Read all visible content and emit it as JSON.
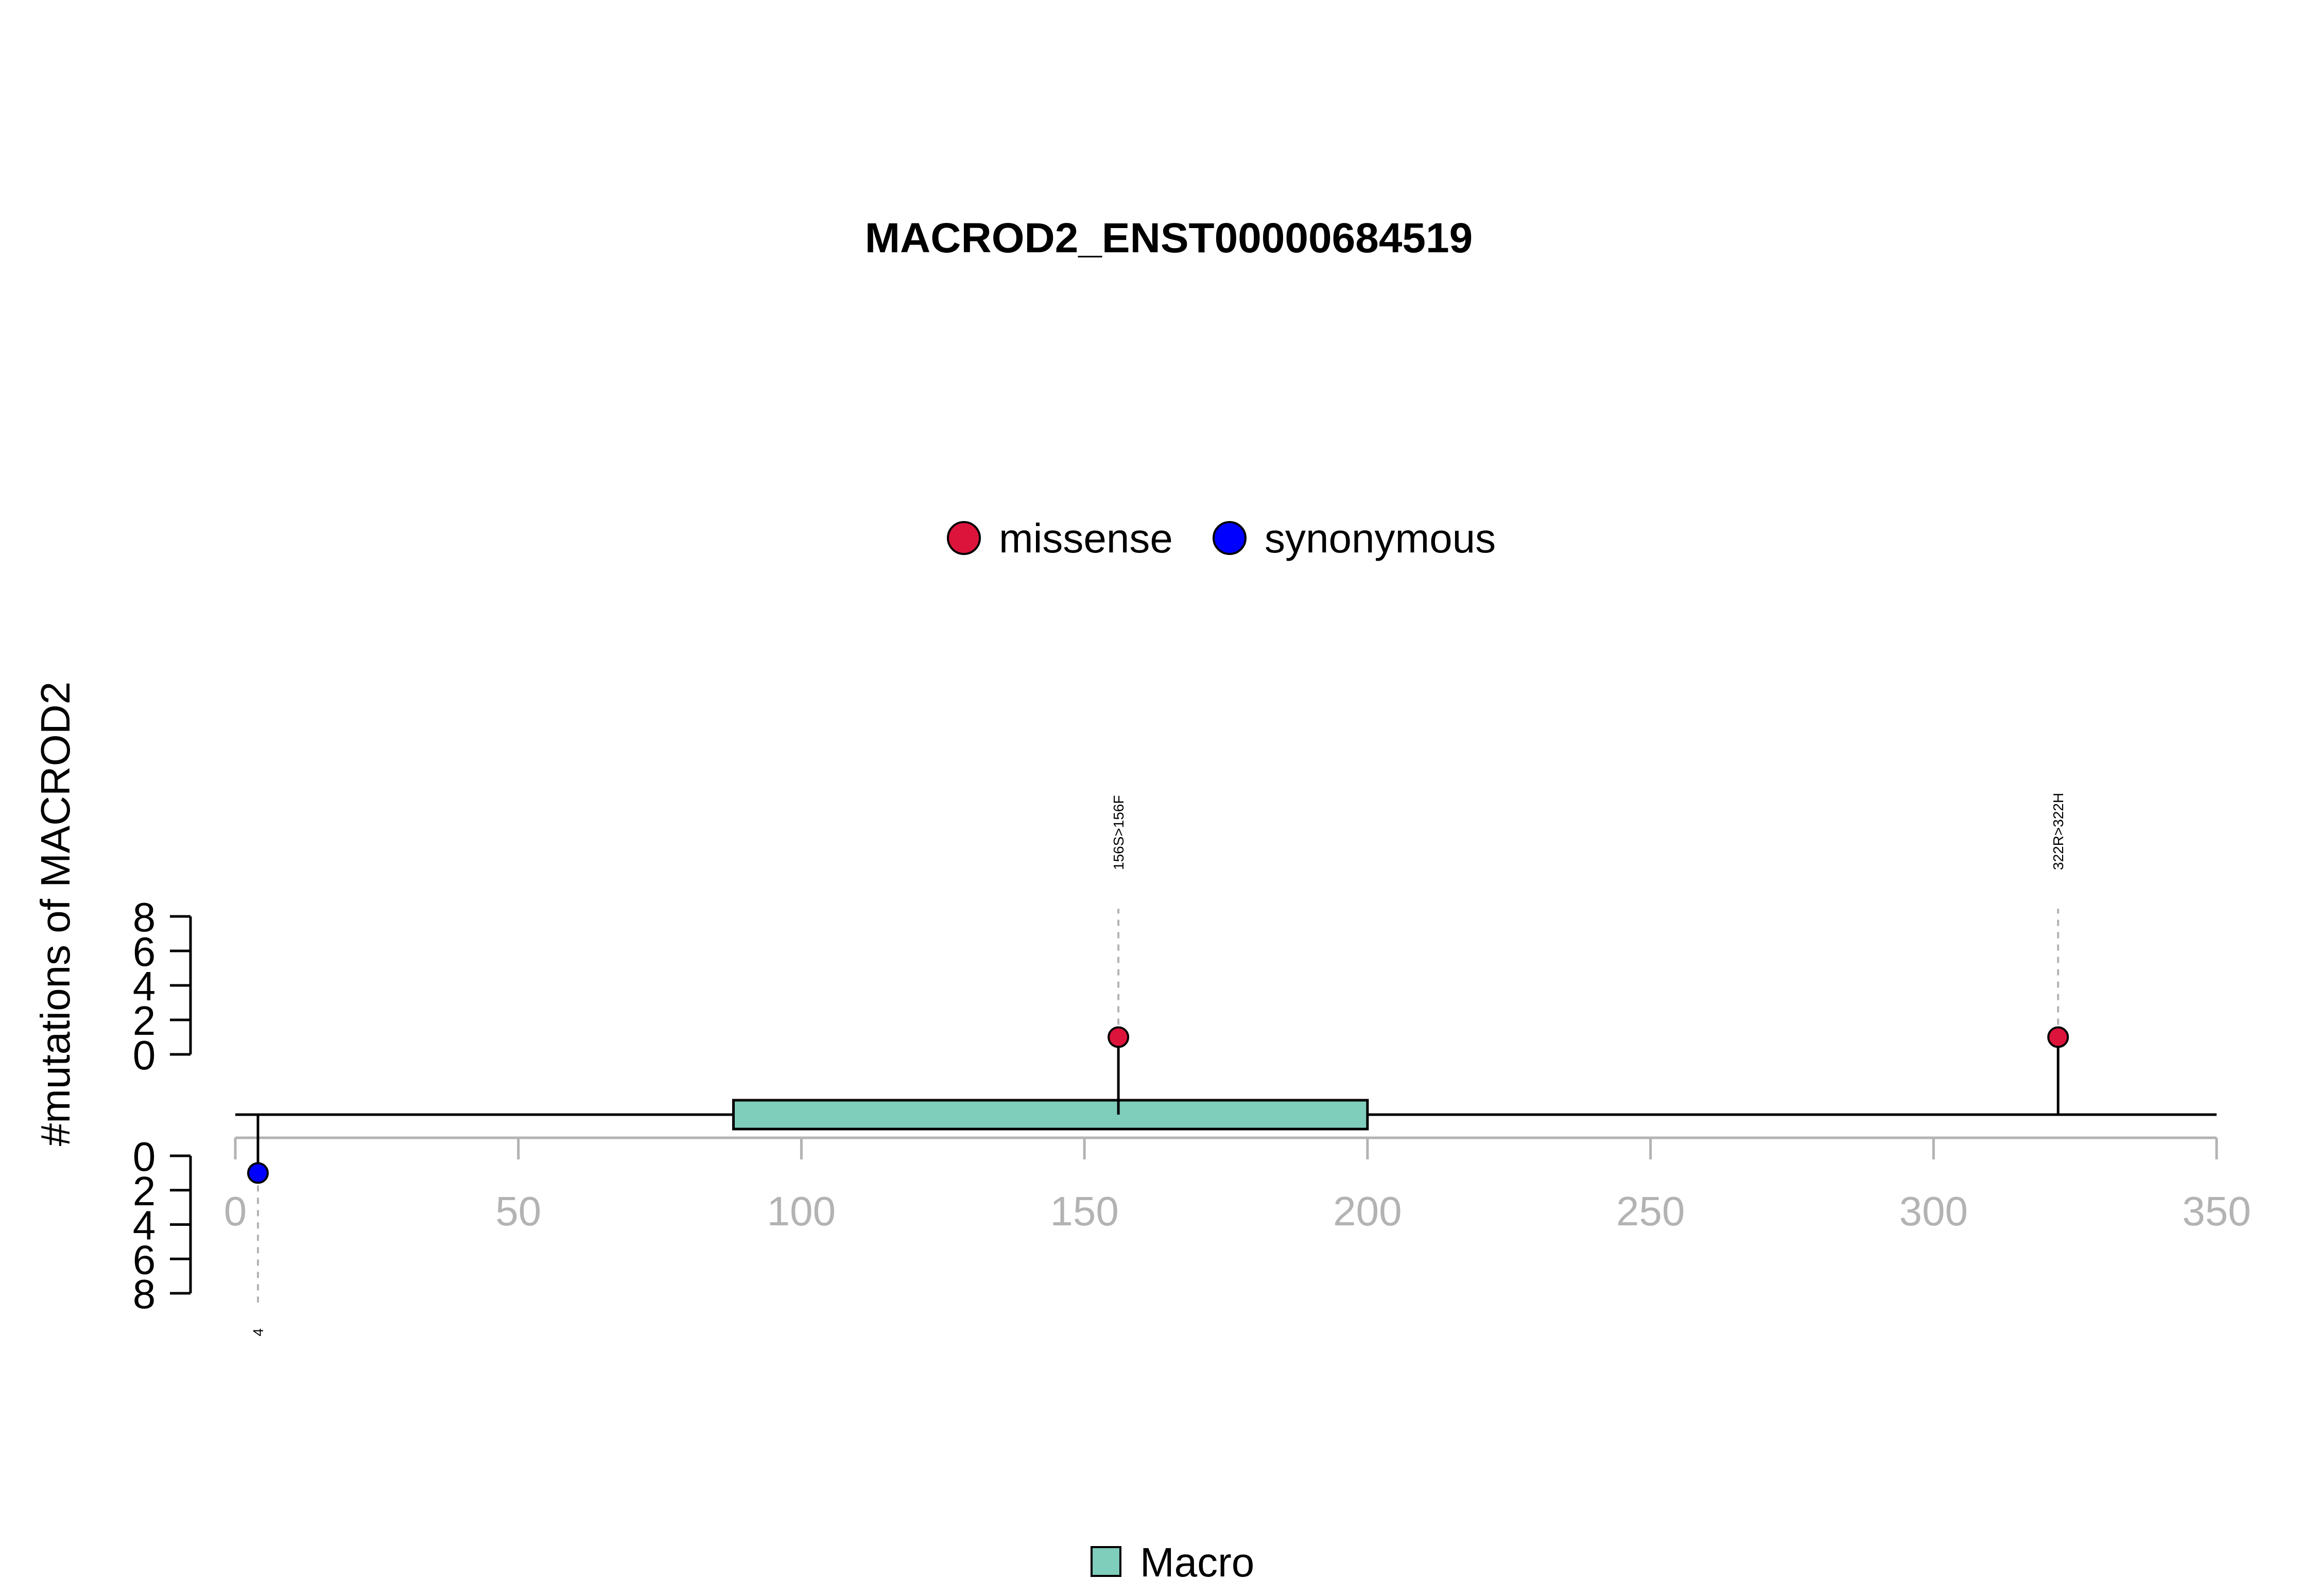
{
  "chart_data": {
    "type": "lollipop",
    "title": "MACROD2_ENST00000684519",
    "ylabel": "#mutations of MACROD2",
    "xlim": [
      0,
      350
    ],
    "x_ticks": [
      0,
      50,
      100,
      150,
      200,
      250,
      300,
      350
    ],
    "ylim_top": [
      0,
      8
    ],
    "ylim_bottom": [
      0,
      8
    ],
    "y_ticks": [
      0,
      2,
      4,
      6,
      8
    ],
    "mutation_legend": [
      {
        "name": "missense",
        "color": "#DC143C"
      },
      {
        "name": "synonymous",
        "color": "#0000FF"
      }
    ],
    "domains": [
      {
        "name": "Macro",
        "start": 88,
        "end": 200,
        "color": "#7FCDBB"
      }
    ],
    "mutations": [
      {
        "position": 156,
        "count": 1,
        "label": "156S>156F",
        "type": "missense",
        "side": "top"
      },
      {
        "position": 322,
        "count": 1,
        "label": "322R>322H",
        "type": "missense",
        "side": "top"
      },
      {
        "position": 4,
        "count": 1,
        "label": "4",
        "type": "synonymous",
        "side": "bottom"
      }
    ],
    "grid": false
  }
}
